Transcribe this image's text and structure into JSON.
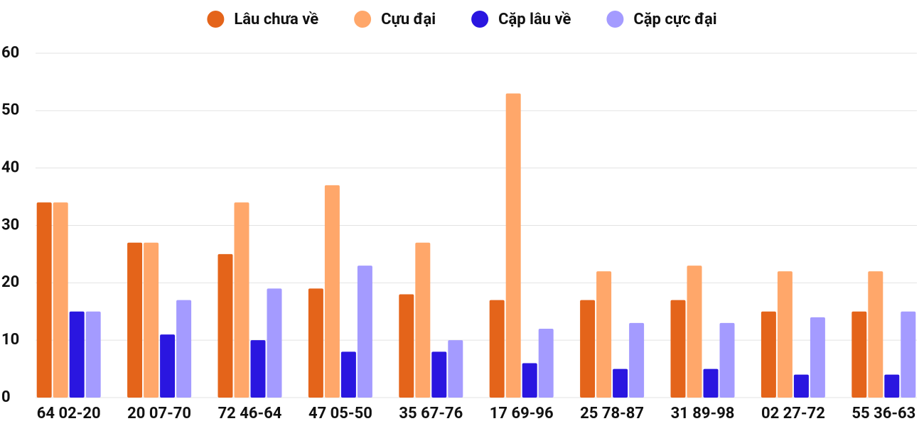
{
  "chart_data": {
    "type": "bar",
    "categories": [
      "64 02-20",
      "20 07-70",
      "72 46-64",
      "47 05-50",
      "35 67-76",
      "17 69-96",
      "25 78-87",
      "31 89-98",
      "02 27-72",
      "55 36-63"
    ],
    "series": [
      {
        "name": "Lâu chưa về",
        "color": "#e4641a",
        "values": [
          34,
          27,
          25,
          19,
          18,
          17,
          17,
          17,
          15,
          15
        ]
      },
      {
        "name": "Cựu đại",
        "color": "#ffa76a",
        "values": [
          34,
          27,
          34,
          37,
          27,
          53,
          22,
          23,
          22,
          22
        ]
      },
      {
        "name": "Cặp lâu về",
        "color": "#2a16e0",
        "values": [
          15,
          11,
          10,
          8,
          8,
          6,
          5,
          5,
          4,
          4
        ]
      },
      {
        "name": "Cặp cực đại",
        "color": "#a49bff",
        "values": [
          15,
          17,
          19,
          23,
          10,
          12,
          13,
          13,
          14,
          15
        ]
      }
    ],
    "ylim": [
      0,
      60
    ],
    "yticks": [
      0,
      10,
      20,
      30,
      40,
      50,
      60
    ],
    "grid": true,
    "legend": "top"
  }
}
